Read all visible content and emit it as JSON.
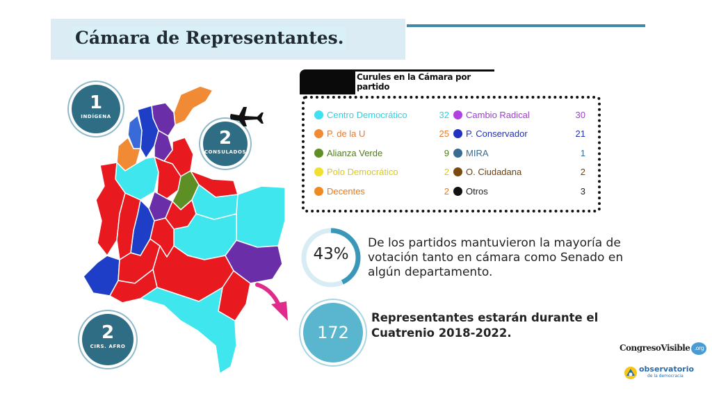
{
  "header": {
    "title": "Cámara de Representantes."
  },
  "badges": {
    "indigena": {
      "number": "1",
      "label": "INDÍGENA"
    },
    "consulados": {
      "number": "2",
      "label": "CONSULADOS"
    },
    "afro": {
      "number": "2",
      "label": "CIRS. AFRO"
    }
  },
  "legend": {
    "title": "Curules en la Cámara por partido",
    "left": [
      {
        "name": "Centro Democrático",
        "value": "32",
        "color": "#3fe0f0"
      },
      {
        "name": "P. de la U",
        "value": "25",
        "color": "#f08a35"
      },
      {
        "name": "Alianza Verde",
        "value": "9",
        "color": "#5e8f24"
      },
      {
        "name": "Polo Democrático",
        "value": "2",
        "color": "#f0e030"
      },
      {
        "name": "Decentes",
        "value": "2",
        "color": "#f08a20"
      }
    ],
    "right": [
      {
        "name": "Cambio Radical",
        "value": "30",
        "color": "#b040e0"
      },
      {
        "name": "P. Conservador",
        "value": "21",
        "color": "#2030c0"
      },
      {
        "name": "MIRA",
        "value": "1",
        "color": "#3a6a90"
      },
      {
        "name": "O. Ciudadana",
        "value": "2",
        "color": "#7a4a10"
      },
      {
        "name": "Otros",
        "value": "3",
        "color": "#111111"
      }
    ]
  },
  "stats": {
    "percent": "43%",
    "percent_value": 0.43,
    "percent_text": "De los partidos mantuvieron la mayoría de votación tanto  en cámara como Senado en algún departamento.",
    "count": "172",
    "count_text": "Representantes estarán durante el Cuatrenio 2018-2022."
  },
  "logos": {
    "congreso": "CongresoVisible",
    "congreso_badge": ".org",
    "observatorio": "observatorio",
    "observatorio_sub": "de la democracia"
  },
  "colors": {
    "accent": "#3f88a9",
    "badge": "#2f6d85",
    "ring": "#3a97b8",
    "ring_track": "#d7ecf3",
    "teal": "#5ab6cf"
  }
}
